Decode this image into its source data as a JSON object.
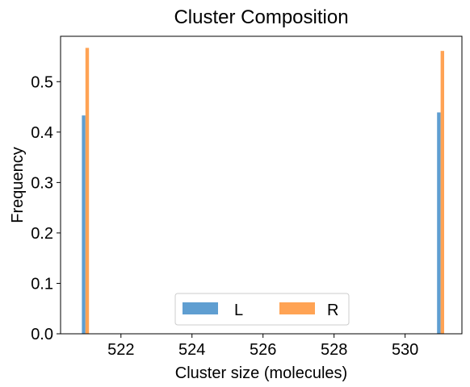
{
  "chart_data": {
    "type": "bar",
    "title": "Cluster Composition",
    "xlabel": "Cluster size (molecules)",
    "ylabel": "Frequency",
    "xlim": [
      520.3,
      531.6
    ],
    "ylim": [
      0,
      0.59
    ],
    "xticks": [
      522,
      524,
      526,
      528,
      530
    ],
    "yticks": [
      0.0,
      0.1,
      0.2,
      0.3,
      0.4,
      0.5
    ],
    "ytick_labels": [
      "0.0",
      "0.1",
      "0.2",
      "0.3",
      "0.4",
      "0.5"
    ],
    "grid": false,
    "legend_position": "bottom-center",
    "series": [
      {
        "name": "L",
        "color": "#5f9ed1",
        "points": [
          {
            "x": 521,
            "y": 0.433
          },
          {
            "x": 531,
            "y": 0.439
          }
        ]
      },
      {
        "name": "R",
        "color": "#ffa354",
        "points": [
          {
            "x": 521,
            "y": 0.567
          },
          {
            "x": 531,
            "y": 0.561
          }
        ]
      }
    ]
  }
}
